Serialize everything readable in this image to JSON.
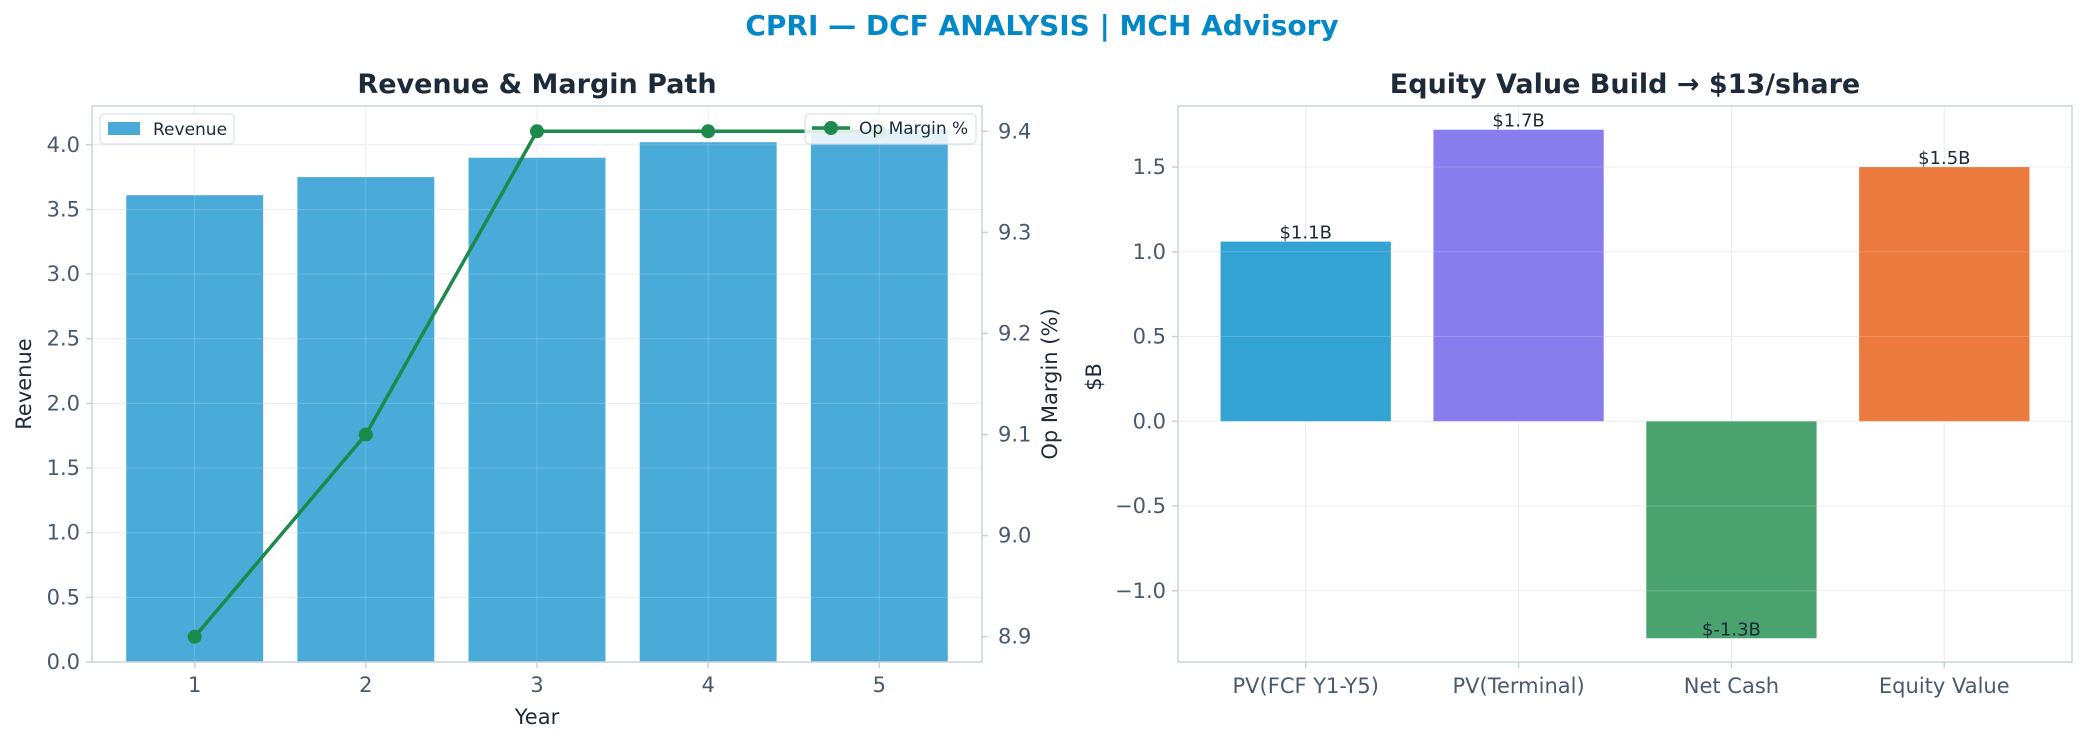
{
  "suptitle": "CPRI — DCF ANALYSIS | MCH Advisory",
  "colors": {
    "title": "#0288c7",
    "revenue_bar": "#4aaad8",
    "margin_line": "#1b8a4a",
    "pv_fcf": "#33a3d4",
    "pv_terminal": "#897ded",
    "net_cash": "#4aa36f",
    "equity_value": "#ec7a3e"
  },
  "chart_data": [
    {
      "type": "bar",
      "title": "Revenue & Margin Path",
      "xlabel": "Year",
      "ylabel": "Revenue",
      "y2label": "Op Margin (%)",
      "categories": [
        "1",
        "2",
        "3",
        "4",
        "5"
      ],
      "ylim": [
        0,
        4.3
      ],
      "y2lim": [
        8.875,
        9.425
      ],
      "yticks": [
        0.0,
        0.5,
        1.0,
        1.5,
        2.0,
        2.5,
        3.0,
        3.5,
        4.0
      ],
      "y2ticks": [
        8.9,
        9.0,
        9.1,
        9.2,
        9.3,
        9.4
      ],
      "series": [
        {
          "name": "Revenue",
          "type": "bar",
          "axis": "left",
          "values": [
            3.61,
            3.75,
            3.9,
            4.02,
            4.12
          ]
        },
        {
          "name": "Op Margin %",
          "type": "line",
          "axis": "right",
          "values": [
            8.9,
            9.1,
            9.4,
            9.4,
            9.4
          ]
        }
      ],
      "grid": true,
      "legend": [
        "upper-left",
        "upper-right"
      ]
    },
    {
      "type": "bar",
      "title": "Equity Value Build → $13/share",
      "ylabel": "$B",
      "categories": [
        "PV(FCF Y1-Y5)",
        "PV(Terminal)",
        "Net Cash",
        "Equity Value"
      ],
      "values": [
        1.06,
        1.72,
        -1.28,
        1.5
      ],
      "data_labels": [
        "$1.1B",
        "$1.7B",
        "$-1.3B",
        "$1.5B"
      ],
      "ylim": [
        -1.42,
        1.86
      ],
      "yticks": [
        -1.0,
        -0.5,
        0.0,
        0.5,
        1.0,
        1.5
      ],
      "grid": true
    }
  ]
}
